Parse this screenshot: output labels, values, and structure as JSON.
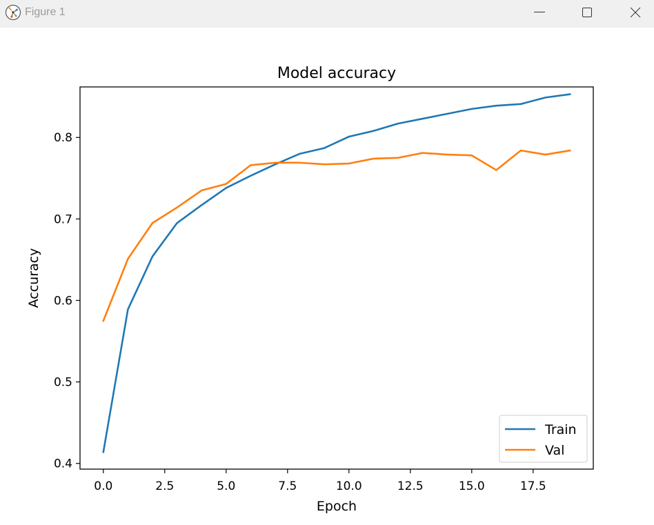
{
  "window": {
    "title": "Figure 1",
    "icon": "matplotlib-icon",
    "controls": [
      "minimize-icon",
      "maximize-icon",
      "close-icon"
    ]
  },
  "colors": {
    "train": "#1f77b4",
    "val": "#ff7f0e",
    "titlebar": "#f0f0f0"
  },
  "chart_data": {
    "type": "line",
    "title": "Model accuracy",
    "xlabel": "Epoch",
    "ylabel": "Accuracy",
    "x": [
      0,
      1,
      2,
      3,
      4,
      5,
      6,
      7,
      8,
      9,
      10,
      11,
      12,
      13,
      14,
      15,
      16,
      17,
      18,
      19
    ],
    "xlim": [
      -0.95,
      19.95
    ],
    "ylim": [
      0.393,
      0.862
    ],
    "xticks": [
      0,
      2.5,
      5,
      7.5,
      10,
      12.5,
      15,
      17.5
    ],
    "xtick_labels": [
      "0.0",
      "2.5",
      "5.0",
      "7.5",
      "10.0",
      "12.5",
      "15.0",
      "17.5"
    ],
    "yticks": [
      0.4,
      0.5,
      0.6,
      0.7,
      0.8
    ],
    "ytick_labels": [
      "0.4",
      "0.5",
      "0.6",
      "0.7",
      "0.8"
    ],
    "grid": false,
    "legend_position": "lower right",
    "series": [
      {
        "name": "Train",
        "color": "#1f77b4",
        "values": [
          0.414,
          0.589,
          0.654,
          0.695,
          0.717,
          0.738,
          0.753,
          0.767,
          0.78,
          0.787,
          0.801,
          0.808,
          0.817,
          0.823,
          0.829,
          0.835,
          0.839,
          0.841,
          0.849,
          0.853
        ]
      },
      {
        "name": "Val",
        "color": "#ff7f0e",
        "values": [
          0.575,
          0.651,
          0.695,
          0.714,
          0.735,
          0.743,
          0.766,
          0.769,
          0.769,
          0.767,
          0.768,
          0.774,
          0.775,
          0.781,
          0.779,
          0.778,
          0.76,
          0.784,
          0.779,
          0.784
        ]
      }
    ]
  }
}
